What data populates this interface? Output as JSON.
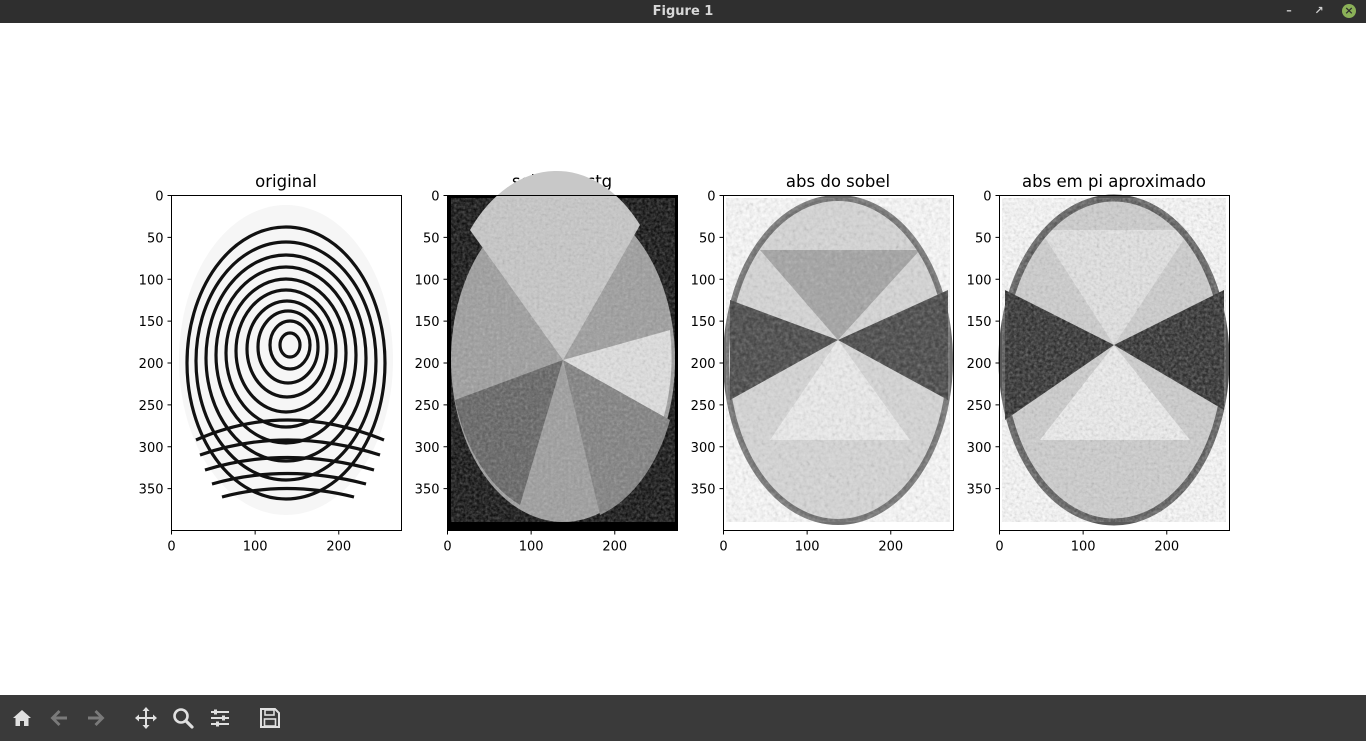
{
  "window": {
    "title": "Figure 1"
  },
  "axes": [
    {
      "title": "original",
      "xticks": [
        "0",
        "100",
        "200"
      ],
      "yticks": [
        "0",
        "50",
        "100",
        "150",
        "200",
        "250",
        "300",
        "350"
      ]
    },
    {
      "title": "sobels arctg",
      "xticks": [
        "0",
        "100",
        "200"
      ],
      "yticks": [
        "0",
        "50",
        "100",
        "150",
        "200",
        "250",
        "300",
        "350"
      ]
    },
    {
      "title": "abs do sobel",
      "xticks": [
        "0",
        "100",
        "200"
      ],
      "yticks": [
        "0",
        "50",
        "100",
        "150",
        "200",
        "250",
        "300",
        "350"
      ]
    },
    {
      "title": "abs em pi aproximado",
      "xticks": [
        "0",
        "100",
        "200"
      ],
      "yticks": [
        "0",
        "50",
        "100",
        "150",
        "200",
        "250",
        "300",
        "350"
      ]
    }
  ],
  "toolbar": {
    "buttons": [
      {
        "name": "home",
        "icon": "home-icon"
      },
      {
        "name": "back",
        "icon": "arrow-left-icon"
      },
      {
        "name": "forward",
        "icon": "arrow-right-icon"
      },
      {
        "name": "pan",
        "icon": "move-icon"
      },
      {
        "name": "zoom",
        "icon": "magnifier-icon"
      },
      {
        "name": "configure-subplots",
        "icon": "sliders-icon"
      },
      {
        "name": "save",
        "icon": "floppy-disk-icon"
      }
    ]
  },
  "colors": {
    "titlebar": "#2f2f2f",
    "toolbar": "#3a3a3a",
    "close": "#8bb158"
  }
}
